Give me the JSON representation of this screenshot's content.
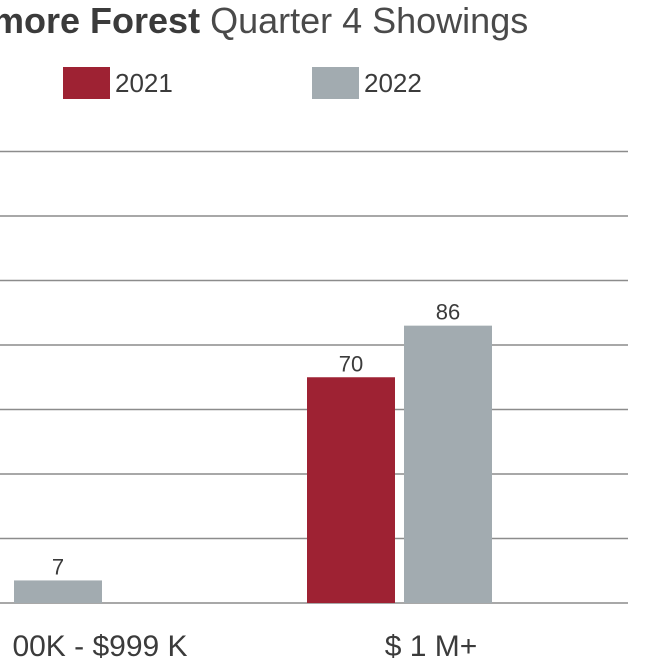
{
  "chart_data": {
    "type": "bar",
    "title_bold": "more Forest",
    "title_light": "Quarter 4 Showings",
    "categories": [
      "00K - $999 K",
      "$ 1 M+"
    ],
    "series": [
      {
        "name": "2021",
        "values": [
          null,
          70
        ],
        "color": "#9e2233"
      },
      {
        "name": "2022",
        "values": [
          7,
          86
        ],
        "color": "#a2abb0"
      }
    ],
    "ylim": [
      0,
      140
    ],
    "grid": true,
    "legend": "top"
  }
}
